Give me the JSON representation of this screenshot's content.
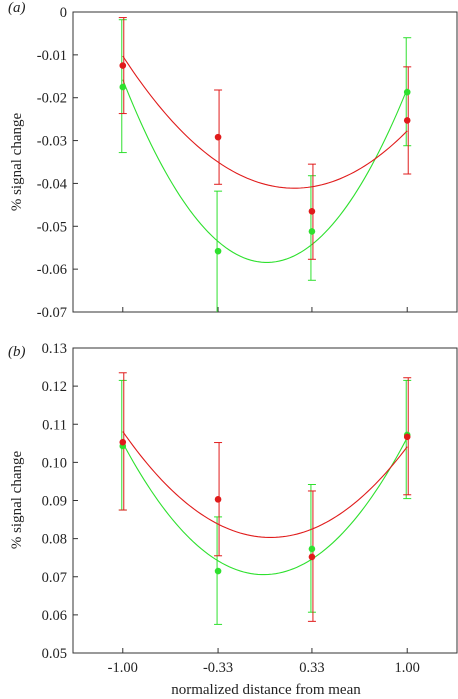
{
  "chart_data": [
    {
      "type": "scatter",
      "panel_label": "(a)",
      "xlabel": "",
      "ylabel": "% signal change",
      "xticks": [
        "-1.00",
        "-0.33",
        "0.33",
        "1.00"
      ],
      "x": [
        -1.0,
        -0.33,
        0.33,
        1.0
      ],
      "xlim": [
        -1.35,
        1.35
      ],
      "ylim": [
        -0.07,
        0
      ],
      "yticks": [
        0,
        -0.01,
        -0.02,
        -0.03,
        -0.04,
        -0.05,
        -0.06,
        -0.07
      ],
      "ytick_labels": [
        "0",
        "-0.01",
        "-0.02",
        "-0.03",
        "-0.04",
        "-0.05",
        "-0.06",
        "-0.07"
      ],
      "grid": false,
      "series": [
        {
          "color": "#e01b1b",
          "values": [
            -0.0125,
            -0.0292,
            -0.0465,
            -0.0253
          ],
          "err_low": [
            -0.0237,
            -0.0402,
            -0.0577,
            -0.0378
          ],
          "err_high": [
            -0.0013,
            -0.0182,
            -0.0355,
            -0.0128
          ],
          "fit": [
            -0.0107,
            -0.0337,
            -0.0421,
            -0.0273
          ]
        },
        {
          "color": "#2ee02e",
          "values": [
            -0.0175,
            -0.0558,
            -0.0512,
            -0.0187
          ],
          "err_low": [
            -0.0328,
            -0.072,
            -0.0626,
            -0.0312
          ],
          "err_high": [
            -0.0018,
            -0.0418,
            -0.0382,
            -0.006
          ],
          "fit": [
            -0.0158,
            -0.0535,
            -0.0543,
            -0.0179
          ]
        }
      ]
    },
    {
      "type": "scatter",
      "panel_label": "(b)",
      "xlabel": "normalized distance from mean",
      "ylabel": "% signal change",
      "xticks": [
        "-1.00",
        "-0.33",
        "0.33",
        "1.00"
      ],
      "x": [
        -1.0,
        -0.33,
        0.33,
        1.0
      ],
      "xlim": [
        -1.35,
        1.35
      ],
      "ylim": [
        0.05,
        0.13
      ],
      "yticks": [
        0.13,
        0.12,
        0.11,
        0.1,
        0.09,
        0.08,
        0.07,
        0.06,
        0.05
      ],
      "ytick_labels": [
        "0.13",
        "0.12",
        "0.11",
        "0.10",
        "0.09",
        "0.08",
        "0.07",
        "0.06",
        "0.05"
      ],
      "grid": false,
      "series": [
        {
          "color": "#e01b1b",
          "values": [
            0.1053,
            0.0903,
            0.0752,
            0.1067
          ],
          "err_low": [
            0.0875,
            0.0755,
            0.0583,
            0.0915
          ],
          "err_high": [
            0.1235,
            0.1052,
            0.0925,
            0.1222
          ],
          "fit": [
            0.1078,
            0.0847,
            0.0816,
            0.1044
          ]
        },
        {
          "color": "#2ee02e",
          "values": [
            0.1043,
            0.0715,
            0.0773,
            0.1072
          ],
          "err_low": [
            0.0875,
            0.0575,
            0.0607,
            0.0905
          ],
          "err_high": [
            0.1215,
            0.0857,
            0.0942,
            0.1215
          ],
          "fit": [
            0.105,
            0.0745,
            0.0743,
            0.1066
          ]
        }
      ]
    }
  ]
}
